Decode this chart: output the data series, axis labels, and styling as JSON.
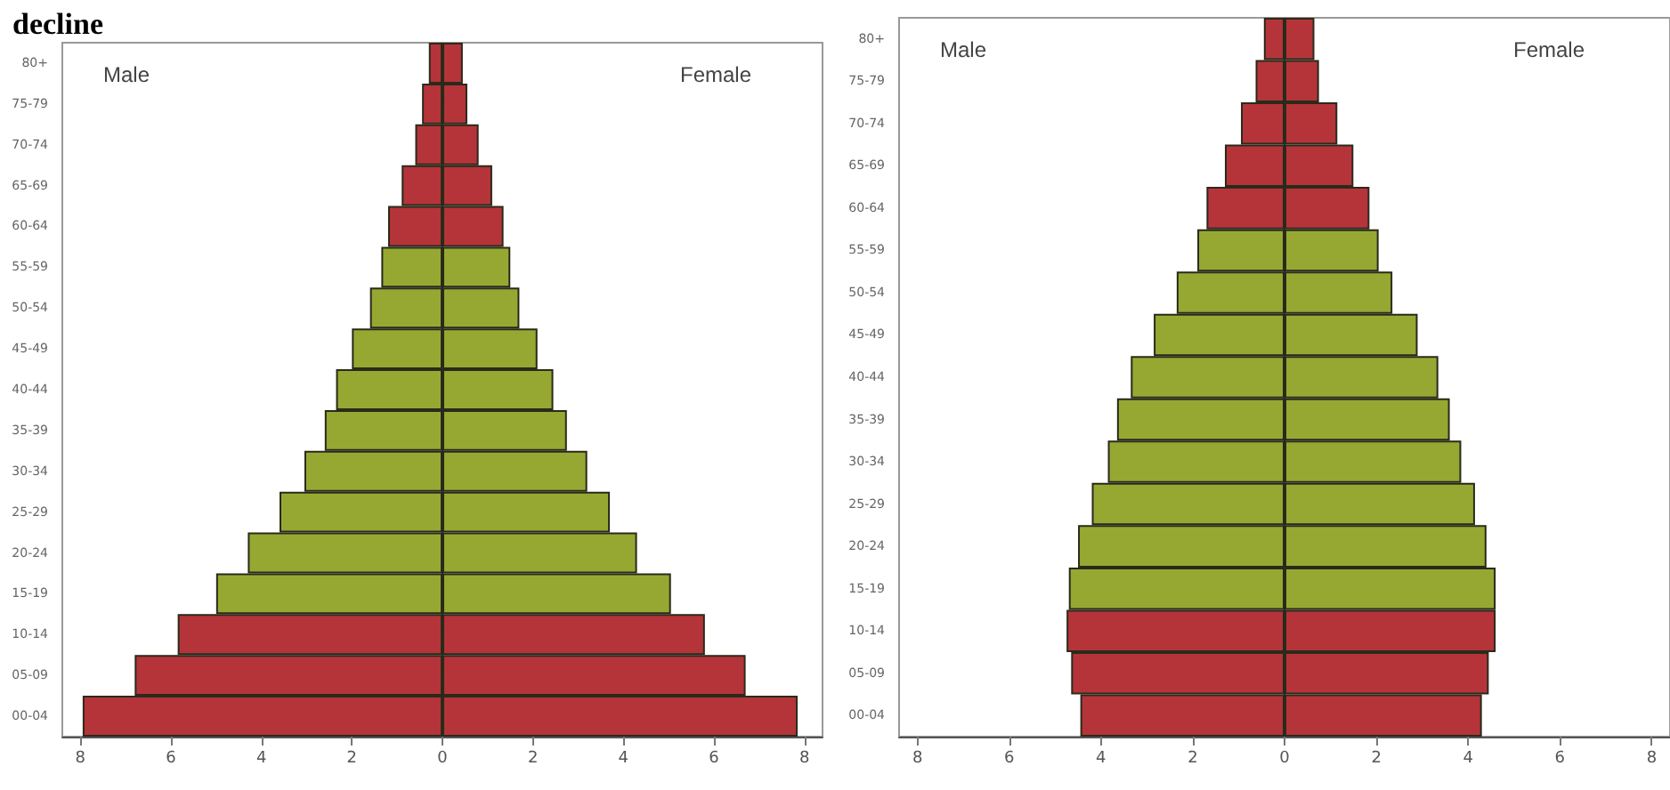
{
  "chart_data": [
    {
      "type": "bar",
      "title": "decline",
      "orientation": "horizontal",
      "stacked": true,
      "grid": false,
      "ref_lines": [
        {
          "axis": "x",
          "value": 0,
          "color": "#2a2a1a"
        }
      ],
      "annotations": [
        "Male",
        "Female"
      ],
      "categories": [
        "80+",
        "75-79",
        "70-74",
        "65-69",
        "60-64",
        "55-59",
        "50-54",
        "45-49",
        "40-44",
        "35-39",
        "30-34",
        "25-29",
        "20-24",
        "15-19",
        "10-14",
        "05-09",
        "00-04"
      ],
      "series": [
        {
          "values": [
            -0.3,
            -0.45,
            -0.6,
            -0.9,
            -1.2,
            -1.35,
            -1.6,
            -2.0,
            -2.35,
            -2.6,
            -3.05,
            -3.6,
            -4.3,
            -5.0,
            -5.85,
            -6.8,
            -7.95
          ],
          "colors": [
            "#b5343a",
            "#b5343a",
            "#b5343a",
            "#b5343a",
            "#b5343a",
            "#97a832",
            "#97a832",
            "#97a832",
            "#97a832",
            "#97a832",
            "#97a832",
            "#97a832",
            "#97a832",
            "#97a832",
            "#b5343a",
            "#b5343a",
            "#b5343a"
          ]
        },
        {
          "values": [
            0.45,
            0.55,
            0.8,
            1.1,
            1.35,
            1.5,
            1.7,
            2.1,
            2.45,
            2.75,
            3.2,
            3.7,
            4.3,
            5.05,
            5.8,
            6.7,
            7.85
          ],
          "colors": [
            "#b5343a",
            "#b5343a",
            "#b5343a",
            "#b5343a",
            "#b5343a",
            "#97a832",
            "#97a832",
            "#97a832",
            "#97a832",
            "#97a832",
            "#97a832",
            "#97a832",
            "#97a832",
            "#97a832",
            "#b5343a",
            "#b5343a",
            "#b5343a"
          ]
        }
      ],
      "xlim": [
        -8.4,
        8.4
      ],
      "xticks": [
        {
          "value": -8,
          "label": "8"
        },
        {
          "value": -6,
          "label": "6"
        },
        {
          "value": -4,
          "label": "4"
        },
        {
          "value": -2,
          "label": "2"
        },
        0,
        2,
        4,
        6,
        8
      ]
    },
    {
      "type": "bar",
      "orientation": "horizontal",
      "stacked": true,
      "grid": false,
      "ref_lines": [
        {
          "axis": "x",
          "value": 0,
          "color": "#2a2a1a"
        }
      ],
      "annotations": [
        "Male",
        "Female"
      ],
      "categories": [
        "80+",
        "75-79",
        "70-74",
        "65-69",
        "60-64",
        "55-59",
        "50-54",
        "45-49",
        "40-44",
        "35-39",
        "30-34",
        "25-29",
        "20-24",
        "15-19",
        "10-14",
        "05-09",
        "00-04"
      ],
      "series": [
        {
          "values": [
            -0.45,
            -0.63,
            -0.95,
            -1.3,
            -1.7,
            -1.9,
            -2.35,
            -2.85,
            -3.35,
            -3.65,
            -3.85,
            -4.2,
            -4.5,
            -4.7,
            -4.75,
            -4.65,
            -4.45
          ],
          "colors": [
            "#b5343a",
            "#b5343a",
            "#b5343a",
            "#b5343a",
            "#b5343a",
            "#97a832",
            "#97a832",
            "#97a832",
            "#97a832",
            "#97a832",
            "#97a832",
            "#97a832",
            "#97a832",
            "#97a832",
            "#b5343a",
            "#b5343a",
            "#b5343a"
          ]
        },
        {
          "values": [
            0.65,
            0.75,
            1.15,
            1.5,
            1.85,
            2.05,
            2.35,
            2.9,
            3.35,
            3.6,
            3.85,
            4.15,
            4.4,
            4.6,
            4.6,
            4.45,
            4.3
          ],
          "colors": [
            "#b5343a",
            "#b5343a",
            "#b5343a",
            "#b5343a",
            "#b5343a",
            "#97a832",
            "#97a832",
            "#97a832",
            "#97a832",
            "#97a832",
            "#97a832",
            "#97a832",
            "#97a832",
            "#97a832",
            "#b5343a",
            "#b5343a",
            "#b5343a"
          ]
        }
      ],
      "xlim": [
        -8.4,
        8.4
      ],
      "xticks": [
        {
          "value": -8,
          "label": "8"
        },
        {
          "value": -6,
          "label": "6"
        },
        {
          "value": -4,
          "label": "4"
        },
        {
          "value": -2,
          "label": "2"
        },
        0,
        2,
        4,
        6,
        8
      ]
    }
  ]
}
